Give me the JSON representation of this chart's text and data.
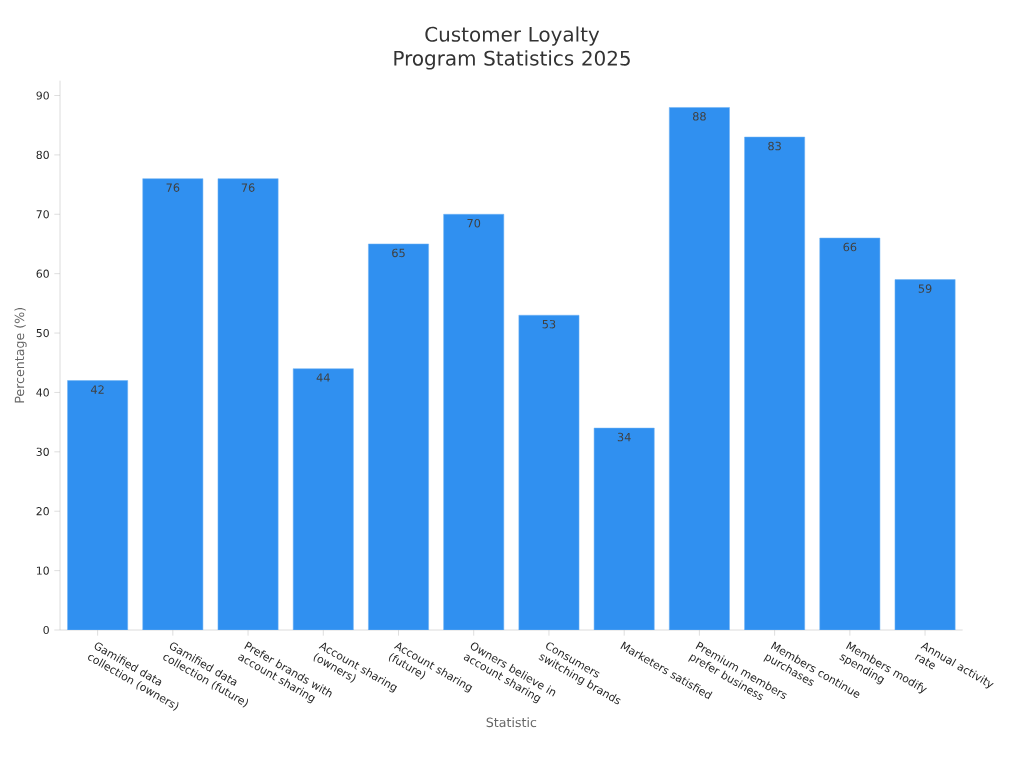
{
  "chart_data": {
    "type": "bar",
    "title": "Customer Loyalty Program Statistics 2025",
    "xlabel": "Statistic",
    "ylabel": "Percentage (%)",
    "categories": [
      "Gamified data collection (owners)",
      "Gamified data collection (future)",
      "Prefer brands with account sharing",
      "Account sharing (owners)",
      "Account sharing (future)",
      "Owners believe in account sharing",
      "Consumers switching brands",
      "Marketers satisfied",
      "Premium members prefer business",
      "Members continue purchases",
      "Members modify spending",
      "Annual activity rate"
    ],
    "values": [
      42,
      76,
      76,
      44,
      65,
      70,
      53,
      34,
      88,
      83,
      66,
      59
    ],
    "color": "#3090f0",
    "data_labels": true,
    "ylim": [
      0,
      92.5
    ],
    "yticks": [
      0,
      10,
      20,
      30,
      40,
      50,
      60,
      70,
      80,
      90
    ]
  }
}
